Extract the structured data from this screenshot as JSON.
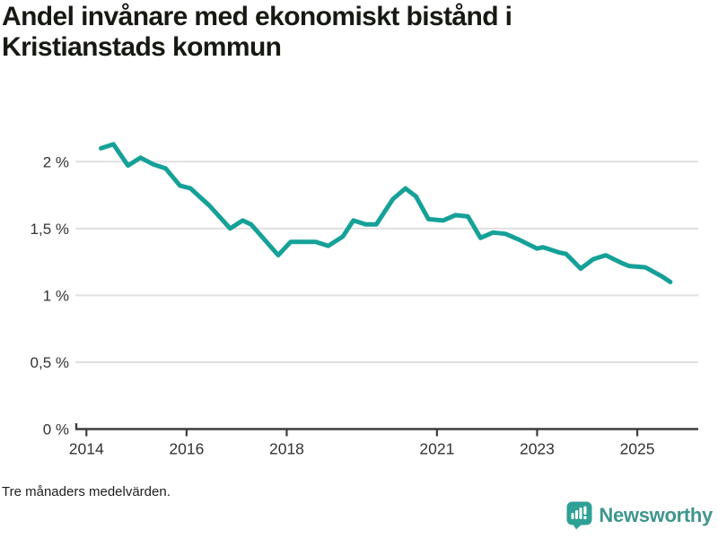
{
  "header": {
    "title_line1": "Andel invånare med ekonomiskt bistånd i",
    "title_line2": "Kristianstads kommun"
  },
  "footer": {
    "note": "Tre månaders medelvärden."
  },
  "branding": {
    "logo_text": "Newsworthy",
    "logo_icon": "bar-chart-bubble-icon"
  },
  "colors": {
    "line": "#15a197",
    "gridline": "#e0e0e0",
    "axis": "#3d3d3d",
    "tick_text": "#333333",
    "title_text": "#161a12",
    "brand_teal": "#3e968d",
    "icon_teal": "#2fa096"
  },
  "chart_data": {
    "type": "line",
    "title": "Andel invånare med ekonomiskt bistånd i Kristianstads kommun",
    "subtitle_note": "Tre månaders medelvärden.",
    "xlabel": "",
    "ylabel": "",
    "unit": "%",
    "grid": "horizontal",
    "legend": "none",
    "xlim": [
      2013.78,
      2026.2
    ],
    "ylim": [
      0,
      2.27
    ],
    "x_ticks": [
      {
        "value": 2014,
        "label": "2014"
      },
      {
        "value": 2016,
        "label": "2016"
      },
      {
        "value": 2018,
        "label": "2018"
      },
      {
        "value": 2021,
        "label": "2021"
      },
      {
        "value": 2023,
        "label": "2023"
      },
      {
        "value": 2025,
        "label": "2025"
      }
    ],
    "y_ticks": [
      {
        "value": 0,
        "label": "0 %"
      },
      {
        "value": 0.5,
        "label": "0,5 %"
      },
      {
        "value": 1,
        "label": "1 %"
      },
      {
        "value": 1.5,
        "label": "1,5 %"
      },
      {
        "value": 2,
        "label": "2 %"
      }
    ],
    "series": [
      {
        "name": "Andel invånare med ekonomiskt bistånd (%)",
        "points": [
          [
            2014.29,
            2.1
          ],
          [
            2014.54,
            2.13
          ],
          [
            2014.83,
            1.97
          ],
          [
            2015.08,
            2.03
          ],
          [
            2015.33,
            1.98
          ],
          [
            2015.58,
            1.95
          ],
          [
            2015.87,
            1.82
          ],
          [
            2016.08,
            1.8
          ],
          [
            2016.46,
            1.67
          ],
          [
            2016.87,
            1.5
          ],
          [
            2017.12,
            1.56
          ],
          [
            2017.29,
            1.53
          ],
          [
            2017.83,
            1.3
          ],
          [
            2018.08,
            1.4
          ],
          [
            2018.58,
            1.4
          ],
          [
            2018.83,
            1.37
          ],
          [
            2019.12,
            1.44
          ],
          [
            2019.33,
            1.56
          ],
          [
            2019.58,
            1.53
          ],
          [
            2019.79,
            1.53
          ],
          [
            2020.12,
            1.72
          ],
          [
            2020.37,
            1.8
          ],
          [
            2020.58,
            1.74
          ],
          [
            2020.83,
            1.57
          ],
          [
            2021.12,
            1.56
          ],
          [
            2021.37,
            1.6
          ],
          [
            2021.62,
            1.59
          ],
          [
            2021.87,
            1.43
          ],
          [
            2022.12,
            1.47
          ],
          [
            2022.37,
            1.46
          ],
          [
            2022.62,
            1.42
          ],
          [
            2023.0,
            1.35
          ],
          [
            2023.12,
            1.36
          ],
          [
            2023.45,
            1.32
          ],
          [
            2023.58,
            1.31
          ],
          [
            2023.87,
            1.2
          ],
          [
            2024.12,
            1.27
          ],
          [
            2024.37,
            1.3
          ],
          [
            2024.7,
            1.24
          ],
          [
            2024.83,
            1.22
          ],
          [
            2025.16,
            1.21
          ],
          [
            2025.5,
            1.14
          ],
          [
            2025.66,
            1.1
          ]
        ]
      }
    ]
  }
}
